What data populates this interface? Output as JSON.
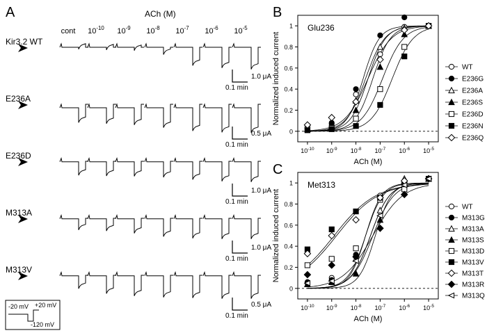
{
  "figure": {
    "panel_a": {
      "letter": "A",
      "ach_header": "ACh (M)",
      "conditions": [
        "cont",
        "10^-10",
        "10^-9",
        "10^-8",
        "10^-7",
        "10^-6",
        "10^-5"
      ],
      "rows": [
        {
          "label": "Kir3.2 WT",
          "scale_y": "1.0 μA",
          "scale_x": "0.1 min",
          "baseline": 0.0,
          "depths": [
            0.06,
            0.08,
            0.1,
            0.22,
            0.55,
            0.62,
            0.66
          ]
        },
        {
          "label": "E236A",
          "scale_y": "0.5 μA",
          "scale_x": "0.1 min",
          "baseline": 0.35,
          "depths": [
            0.55,
            0.58,
            0.62,
            0.7,
            0.8,
            0.84,
            0.85
          ]
        },
        {
          "label": "E236D",
          "scale_y": "1.0 μA",
          "scale_x": "0.1 min",
          "baseline": 0.05,
          "depths": [
            0.42,
            0.44,
            0.45,
            0.48,
            0.55,
            0.6,
            0.62
          ]
        },
        {
          "label": "M313A",
          "scale_y": "1.0 μA",
          "scale_x": "0.1 min",
          "baseline": 0.05,
          "depths": [
            0.35,
            0.38,
            0.45,
            0.55,
            0.6,
            0.62,
            0.62
          ]
        },
        {
          "label": "M313V",
          "scale_y": "0.5 μA",
          "scale_x": "0.1 min",
          "baseline": 0.05,
          "depths": [
            0.4,
            0.55,
            0.62,
            0.66,
            0.68,
            0.7,
            0.7
          ]
        }
      ],
      "protocol": {
        "hold": "-20 mV",
        "step_up": "+20 mV",
        "step_down": "-120 mV"
      }
    }
  },
  "chart_data": [
    {
      "panel": "B",
      "type": "scatter",
      "title": "Glu236",
      "xlabel": "ACh (M)",
      "ylabel": "Normalized induced current",
      "x": [
        -10,
        -9,
        -8,
        -7,
        -6,
        -5
      ],
      "xticks": [
        "10^-10",
        "10^-9",
        "10^-8",
        "10^-7",
        "10^-6",
        "10^-5"
      ],
      "yticks": [
        "0",
        "0.2",
        "0.4",
        "0.6",
        "0.8",
        "1"
      ],
      "xlim": [
        -10.4,
        -4.6
      ],
      "ylim": [
        -0.1,
        1.1
      ],
      "legend_position": "right",
      "series": [
        {
          "name": "WT",
          "marker": "circle-open",
          "values": [
            0.03,
            0.07,
            0.35,
            0.73,
            0.99,
            1.0
          ],
          "ec50": -7.6,
          "hill": 1.1
        },
        {
          "name": "E236G",
          "marker": "circle-filled",
          "values": [
            0.03,
            0.08,
            0.4,
            0.91,
            1.08,
            1.0
          ],
          "ec50": -7.7,
          "hill": 1.3
        },
        {
          "name": "E236A",
          "marker": "triangle-open",
          "values": [
            0.02,
            0.05,
            0.29,
            0.8,
            0.98,
            1.0
          ],
          "ec50": -7.5,
          "hill": 1.2
        },
        {
          "name": "E236S",
          "marker": "triangle-filled",
          "values": [
            0.02,
            0.04,
            0.2,
            0.61,
            0.92,
            1.0
          ],
          "ec50": -7.3,
          "hill": 1.2
        },
        {
          "name": "E236D",
          "marker": "square-open",
          "values": [
            0.02,
            0.03,
            0.12,
            0.4,
            0.8,
            1.0
          ],
          "ec50": -6.9,
          "hill": 1.0
        },
        {
          "name": "E236N",
          "marker": "square-filled",
          "values": [
            0.01,
            0.02,
            0.05,
            0.25,
            0.71,
            1.0
          ],
          "ec50": -6.5,
          "hill": 1.0
        },
        {
          "name": "E236Q",
          "marker": "diamond-open",
          "values": [
            0.06,
            0.13,
            0.28,
            0.68,
            0.96,
            1.0
          ],
          "ec50": -7.5,
          "hill": 0.9
        }
      ]
    },
    {
      "panel": "C",
      "type": "scatter",
      "title": "Met313",
      "xlabel": "ACh (M)",
      "ylabel": "Normalized induced current",
      "x": [
        -10,
        -9,
        -8,
        -7,
        -6,
        -5
      ],
      "xticks": [
        "10^-10",
        "10^-9",
        "10^-8",
        "10^-7",
        "10^-6",
        "10^-5"
      ],
      "yticks": [
        "0",
        "0.2",
        "0.4",
        "0.6",
        "0.8",
        "1"
      ],
      "xlim": [
        -10.4,
        -4.6
      ],
      "ylim": [
        -0.1,
        1.1
      ],
      "legend_position": "right",
      "series": [
        {
          "name": "WT",
          "marker": "circle-open",
          "values": [
            0.05,
            0.1,
            0.3,
            0.88,
            1.02,
            1.04
          ],
          "ec50": -7.6,
          "hill": 1.3
        },
        {
          "name": "M313G",
          "marker": "circle-filled",
          "values": [
            0.06,
            0.08,
            0.32,
            0.86,
            1.0,
            1.04
          ],
          "ec50": -7.6,
          "hill": 1.2
        },
        {
          "name": "M313A",
          "marker": "triangle-open",
          "values": [
            0.04,
            0.06,
            0.28,
            0.74,
            1.04,
            1.04
          ],
          "ec50": -7.4,
          "hill": 1.1
        },
        {
          "name": "M313S",
          "marker": "triangle-filled",
          "values": [
            0.04,
            0.06,
            0.14,
            0.65,
            1.02,
            1.04
          ],
          "ec50": -7.2,
          "hill": 1.3
        },
        {
          "name": "M313D",
          "marker": "square-open",
          "values": [
            0.22,
            0.28,
            0.38,
            0.84,
            0.94,
            1.04
          ],
          "ec50": -7.3,
          "hill": 1.0
        },
        {
          "name": "M313V",
          "marker": "square-filled",
          "values": [
            0.37,
            0.56,
            0.73,
            0.86,
            1.0,
            1.04
          ],
          "ec50": -8.8,
          "hill": 0.5
        },
        {
          "name": "M313T",
          "marker": "diamond-open",
          "values": [
            0.33,
            0.5,
            0.65,
            0.86,
            1.02,
            1.04
          ],
          "ec50": -8.9,
          "hill": 0.5
        },
        {
          "name": "M313R",
          "marker": "diamond-filled",
          "values": [
            0.13,
            0.22,
            0.3,
            0.57,
            0.89,
            1.04
          ],
          "ec50": -7.3,
          "hill": 0.7
        },
        {
          "name": "M313Q",
          "marker": "triangle-left-open",
          "values": [
            0.05,
            0.07,
            0.26,
            0.69,
            0.98,
            1.04
          ],
          "ec50": -7.4,
          "hill": 1.1
        }
      ]
    }
  ]
}
